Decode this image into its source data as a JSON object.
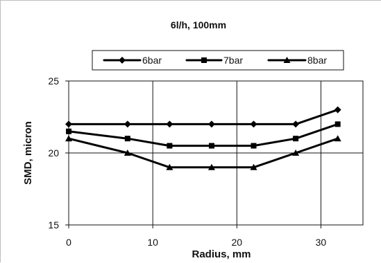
{
  "chart_data": {
    "type": "line",
    "title": "6l/h,  100mm",
    "xlabel": "Radius,  mm",
    "ylabel": "SMD,  micron",
    "xlim": [
      0,
      35
    ],
    "ylim": [
      15,
      25
    ],
    "xticks": [
      "0",
      "10",
      "20",
      "30"
    ],
    "yticks": [
      "15",
      "20",
      "25"
    ],
    "grid": "major-both",
    "legend_position": "top",
    "series": [
      {
        "name": "6bar",
        "marker": "diamond",
        "x": [
          0,
          7,
          12,
          17,
          22,
          27,
          32
        ],
        "values": [
          22,
          22,
          22,
          22,
          22,
          22,
          23
        ]
      },
      {
        "name": "7bar",
        "marker": "square",
        "x": [
          0,
          7,
          12,
          17,
          22,
          27,
          32
        ],
        "values": [
          21.5,
          21,
          20.5,
          20.5,
          20.5,
          21,
          22
        ]
      },
      {
        "name": "8bar",
        "marker": "triangle",
        "x": [
          0,
          7,
          12,
          17,
          22,
          27,
          32
        ],
        "values": [
          21,
          20,
          19,
          19,
          19,
          20,
          21
        ]
      }
    ]
  }
}
